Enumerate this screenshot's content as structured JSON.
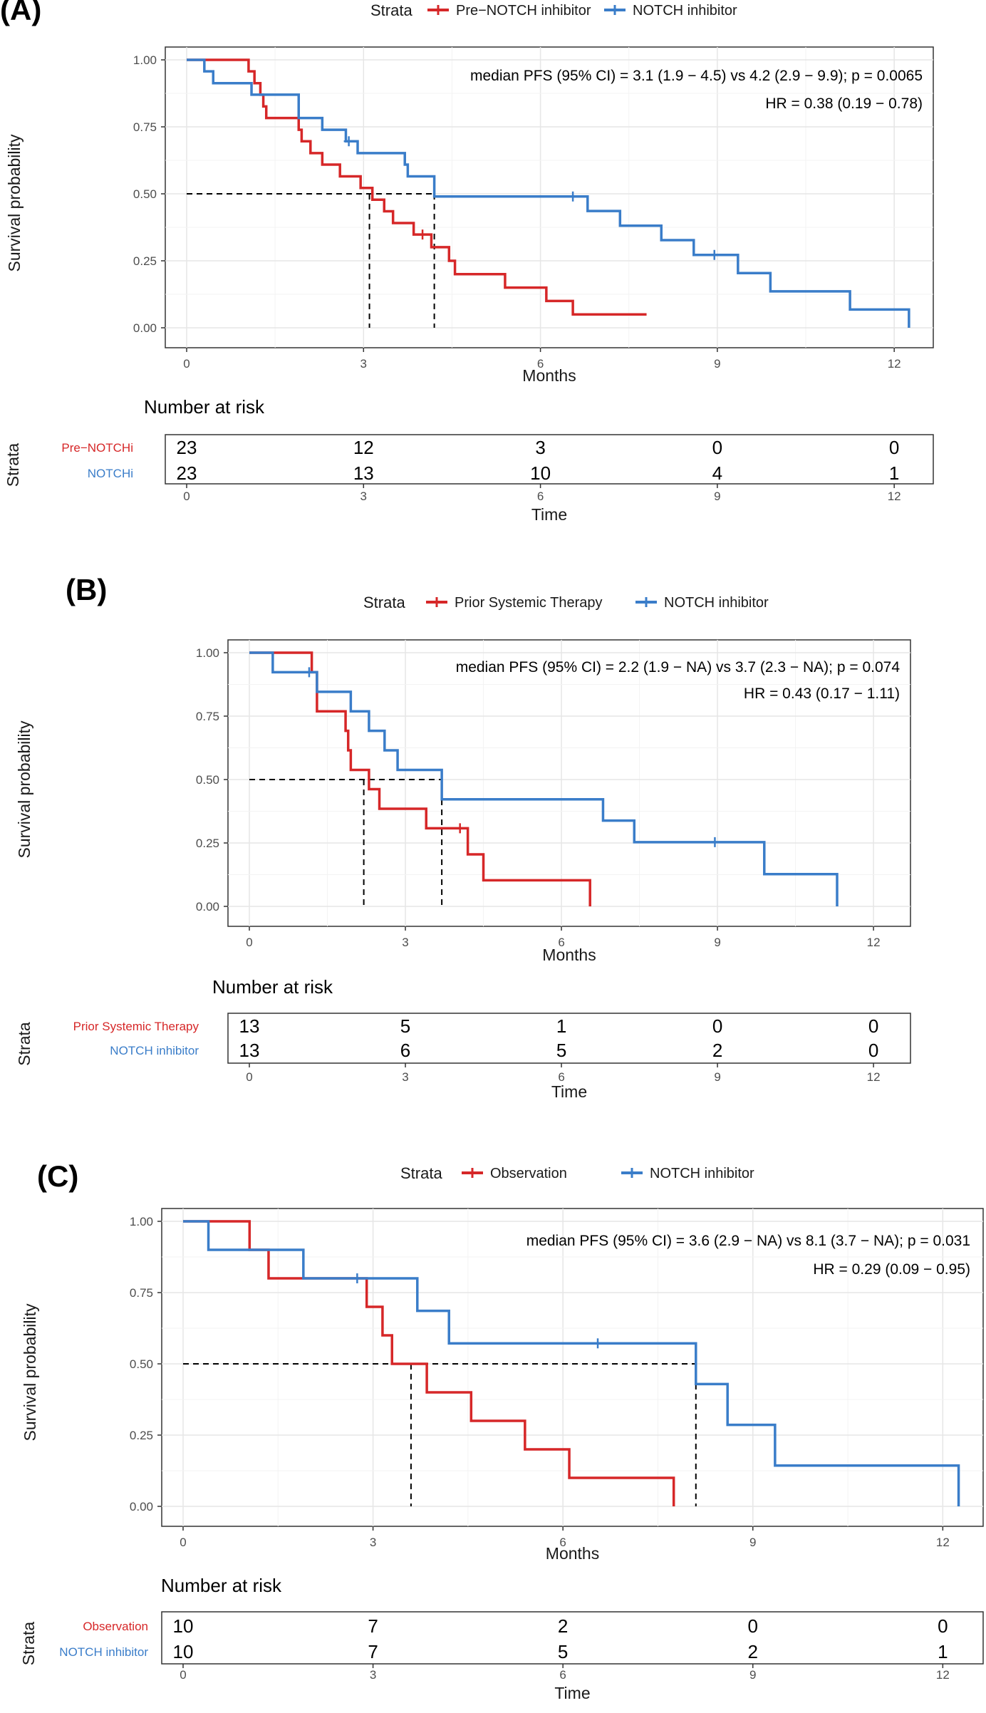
{
  "panels": [
    {
      "tag": "(A)",
      "legend": {
        "title": "Strata",
        "labels": [
          "Pre−NOTCH inhibitor",
          "NOTCH inhibitor"
        ]
      },
      "annotation": {
        "line1": "median PFS (95% CI) = 3.1 (1.9 − 4.5) vs 4.2 (2.9 − 9.9); p = 0.0065",
        "line2": "HR = 0.38 (0.19 − 0.78)"
      },
      "risk_title": "Number at risk",
      "risk_labels": [
        "Pre−NOTCHi",
        "NOTCHi"
      ]
    },
    {
      "tag": "(B)",
      "legend": {
        "title": "Strata",
        "labels": [
          "Prior Systemic Therapy",
          "NOTCH inhibitor"
        ]
      },
      "annotation": {
        "line1": "median PFS (95% CI) = 2.2 (1.9 − NA) vs 3.7 (2.3 − NA); p = 0.074",
        "line2": "HR = 0.43 (0.17 − 1.11)"
      },
      "risk_title": "Number at risk",
      "risk_labels": [
        "Prior Systemic Therapy",
        "NOTCH inhibitor"
      ]
    },
    {
      "tag": "(C)",
      "legend": {
        "title": "Strata",
        "labels": [
          "Observation",
          "NOTCH inhibitor"
        ]
      },
      "annotation": {
        "line1": "median PFS (95% CI) = 3.6 (2.9 − NA) vs 8.1 (3.7 − NA); p = 0.031",
        "line2": "HR = 0.29 (0.09 − 0.95)"
      },
      "risk_title": "Number at risk",
      "risk_labels": [
        "Observation",
        "NOTCH inhibitor"
      ]
    }
  ],
  "chart_data": [
    {
      "type": "line",
      "subtype": "kaplan-meier",
      "xlabel": "Months",
      "ylabel": "Survival probability",
      "xlim": [
        0,
        12.3
      ],
      "ylim": [
        0,
        1
      ],
      "xticks": [
        "0",
        "3",
        "6",
        "9",
        "12"
      ],
      "yticks": [
        "0.00",
        "0.25",
        "0.50",
        "0.75",
        "1.00"
      ],
      "grid": true,
      "legend_position": "top",
      "colors": [
        "#d62728",
        "#3a7dc9"
      ],
      "series": [
        {
          "name": "Pre−NOTCH inhibitor",
          "x": [
            0,
            1.05,
            1.15,
            1.25,
            1.3,
            1.35,
            1.9,
            1.95,
            2.1,
            2.3,
            2.6,
            2.95,
            3.15,
            3.35,
            3.5,
            3.85,
            4.15,
            4.45,
            4.55,
            5.4,
            6.1,
            6.55,
            7.8
          ],
          "y": [
            1.0,
            0.957,
            0.913,
            0.87,
            0.826,
            0.783,
            0.739,
            0.696,
            0.652,
            0.609,
            0.565,
            0.522,
            0.478,
            0.435,
            0.391,
            0.348,
            0.301,
            0.25,
            0.2,
            0.15,
            0.1,
            0.05,
            0.05
          ],
          "censor_x": [
            4.0
          ],
          "censor_y": [
            0.348
          ]
        },
        {
          "name": "NOTCH inhibitor",
          "x": [
            0,
            0.3,
            0.45,
            1.1,
            1.9,
            2.3,
            2.7,
            2.9,
            3.7,
            3.75,
            4.2,
            6.8,
            7.35,
            8.05,
            8.6,
            9.35,
            9.9,
            11.25,
            12.25
          ],
          "y": [
            1.0,
            0.957,
            0.913,
            0.87,
            0.783,
            0.739,
            0.696,
            0.652,
            0.609,
            0.565,
            0.49,
            0.436,
            0.381,
            0.327,
            0.272,
            0.204,
            0.136,
            0.068,
            0.0
          ],
          "censor_x": [
            6.55,
            2.75,
            8.95
          ],
          "censor_y": [
            0.49,
            0.696,
            0.272
          ]
        }
      ],
      "median_x": [
        3.1,
        4.2
      ]
    },
    {
      "type": "line",
      "subtype": "kaplan-meier",
      "xlabel": "Months",
      "ylabel": "Survival probability",
      "xlim": [
        0,
        12.3
      ],
      "ylim": [
        0,
        1
      ],
      "xticks": [
        "0",
        "3",
        "6",
        "9",
        "12"
      ],
      "yticks": [
        "0.00",
        "0.25",
        "0.50",
        "0.75",
        "1.00"
      ],
      "grid": true,
      "legend_position": "top",
      "colors": [
        "#d62728",
        "#3a7dc9"
      ],
      "series": [
        {
          "name": "Prior Systemic Therapy",
          "x": [
            0,
            1.2,
            1.3,
            1.85,
            1.9,
            1.95,
            2.0,
            2.3,
            2.5,
            3.4,
            4.2,
            4.5,
            6.55
          ],
          "y": [
            1.0,
            0.923,
            0.769,
            0.692,
            0.615,
            0.538,
            0.538,
            0.462,
            0.385,
            0.308,
            0.205,
            0.103,
            0.0
          ],
          "censor_x": [
            4.05
          ],
          "censor_y": [
            0.308
          ]
        },
        {
          "name": "NOTCH inhibitor",
          "x": [
            0,
            0.45,
            1.3,
            1.95,
            2.3,
            2.6,
            2.85,
            3.7,
            6.8,
            7.4,
            9.9,
            11.3
          ],
          "y": [
            1.0,
            0.923,
            0.846,
            0.769,
            0.692,
            0.615,
            0.538,
            0.422,
            0.338,
            0.253,
            0.127,
            0.0
          ],
          "censor_x": [
            1.15,
            8.95
          ],
          "censor_y": [
            0.923,
            0.253
          ]
        }
      ],
      "median_x": [
        2.2,
        3.7
      ]
    },
    {
      "type": "line",
      "subtype": "kaplan-meier",
      "xlabel": "Months",
      "ylabel": "Survival probability",
      "xlim": [
        0,
        12.3
      ],
      "ylim": [
        0,
        1
      ],
      "xticks": [
        "0",
        "3",
        "6",
        "9",
        "12"
      ],
      "yticks": [
        "0.00",
        "0.25",
        "0.50",
        "0.75",
        "1.00"
      ],
      "grid": true,
      "legend_position": "top",
      "colors": [
        "#d62728",
        "#3a7dc9"
      ],
      "series": [
        {
          "name": "Observation",
          "x": [
            0,
            1.05,
            1.35,
            2.9,
            3.15,
            3.3,
            3.85,
            4.55,
            5.4,
            6.1,
            7.75
          ],
          "y": [
            1.0,
            0.9,
            0.8,
            0.7,
            0.6,
            0.5,
            0.4,
            0.3,
            0.2,
            0.1,
            0.0
          ],
          "censor_x": [],
          "censor_y": []
        },
        {
          "name": "NOTCH inhibitor",
          "x": [
            0,
            0.4,
            1.9,
            3.7,
            4.2,
            8.1,
            8.6,
            9.35,
            12.25
          ],
          "y": [
            1.0,
            0.9,
            0.8,
            0.686,
            0.572,
            0.429,
            0.286,
            0.143,
            0.0
          ],
          "censor_x": [
            2.75,
            6.55
          ],
          "censor_y": [
            0.8,
            0.572
          ]
        }
      ],
      "median_x": [
        3.6,
        8.1
      ]
    }
  ],
  "risk_tables": [
    {
      "time_ticks": [
        "0",
        "3",
        "6",
        "9",
        "12"
      ],
      "rows": [
        [
          "23",
          "12",
          "3",
          "0",
          "0"
        ],
        [
          "23",
          "13",
          "10",
          "4",
          "1"
        ]
      ],
      "ylabel": "Strata",
      "xlabel": "Time"
    },
    {
      "time_ticks": [
        "0",
        "3",
        "6",
        "9",
        "12"
      ],
      "rows": [
        [
          "13",
          "5",
          "1",
          "0",
          "0"
        ],
        [
          "13",
          "6",
          "5",
          "2",
          "0"
        ]
      ],
      "ylabel": "Strata",
      "xlabel": "Time"
    },
    {
      "time_ticks": [
        "0",
        "3",
        "6",
        "9",
        "12"
      ],
      "rows": [
        [
          "10",
          "7",
          "2",
          "0",
          "0"
        ],
        [
          "10",
          "7",
          "5",
          "2",
          "1"
        ]
      ],
      "ylabel": "Strata",
      "xlabel": "Time"
    }
  ]
}
